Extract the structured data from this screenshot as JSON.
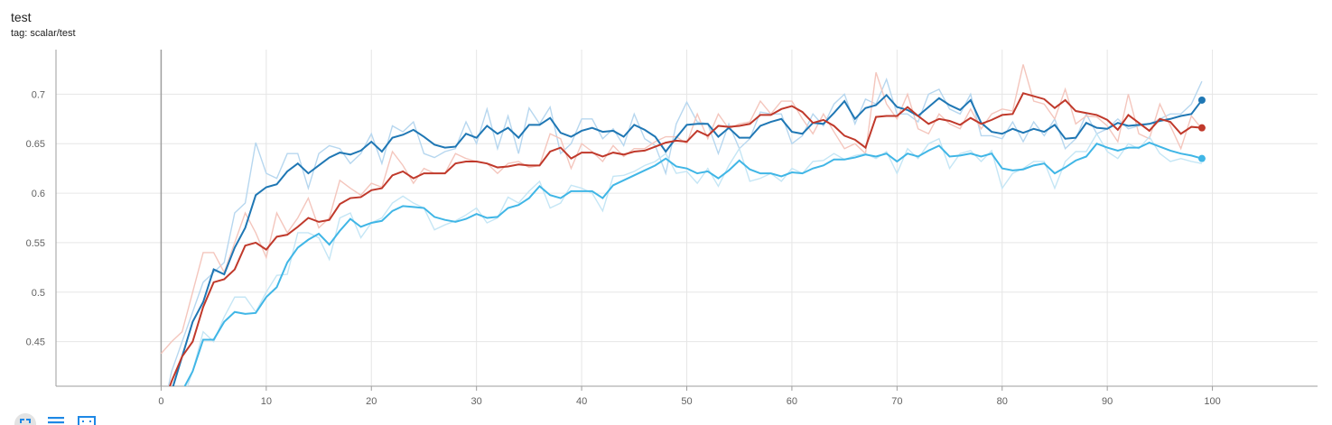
{
  "card": {
    "title": "test",
    "tag": "tag: scalar/test"
  },
  "colors": {
    "grid": "#e6e6e6",
    "axis": "#9e9e9e",
    "zero_line": "#9e9e9e",
    "series": [
      "#1f77b4",
      "#c0392b",
      "#40b6e6"
    ],
    "series_raw": [
      "#b7d7ef",
      "#f4c6bd",
      "#c5e6f5"
    ],
    "toolbar_icon": "#1e88e5"
  },
  "toolbar": {
    "icons": [
      "fullscreen-icon",
      "list-icon",
      "fit-domain-icon"
    ]
  },
  "chart_data": {
    "type": "line",
    "title": "",
    "xlabel": "",
    "ylabel": "",
    "xlim": [
      -10,
      110
    ],
    "ylim": [
      0.405,
      0.745
    ],
    "x_ticks": [
      0,
      10,
      20,
      30,
      40,
      50,
      60,
      70,
      80,
      90,
      100
    ],
    "y_ticks": [
      0.45,
      0.5,
      0.55,
      0.6,
      0.65,
      0.7
    ],
    "grid": true,
    "legend": "none",
    "series": [
      {
        "smoothed": [
          0.38,
          0.4,
          0.435,
          0.47,
          0.49,
          0.523,
          0.518,
          0.545,
          0.565,
          0.598,
          0.606,
          0.609,
          0.622,
          0.63,
          0.62,
          0.628,
          0.636,
          0.641,
          0.639,
          0.643,
          0.652,
          0.642,
          0.656,
          0.659,
          0.664,
          0.657,
          0.649,
          0.646,
          0.647,
          0.66,
          0.656,
          0.668,
          0.66,
          0.666,
          0.656,
          0.669,
          0.669,
          0.676,
          0.661,
          0.657,
          0.663,
          0.666,
          0.662,
          0.663,
          0.657,
          0.669,
          0.664,
          0.657,
          0.642,
          0.656,
          0.669,
          0.67,
          0.67,
          0.657,
          0.666,
          0.656,
          0.656,
          0.668,
          0.672,
          0.675,
          0.662,
          0.66,
          0.671,
          0.67,
          0.681,
          0.693,
          0.675,
          0.686,
          0.689,
          0.699,
          0.687,
          0.684,
          0.678,
          0.687,
          0.696,
          0.689,
          0.684,
          0.694,
          0.671,
          0.662,
          0.66,
          0.665,
          0.661,
          0.665,
          0.662,
          0.669,
          0.655,
          0.656,
          0.671,
          0.666,
          0.665,
          0.671,
          0.668,
          0.669,
          0.67,
          0.673,
          0.675,
          0.678,
          0.68,
          0.694
        ],
        "raw": [
          0.37,
          0.42,
          0.45,
          0.48,
          0.51,
          0.52,
          0.53,
          0.58,
          0.59,
          0.651,
          0.62,
          0.615,
          0.64,
          0.64,
          0.605,
          0.64,
          0.648,
          0.645,
          0.63,
          0.64,
          0.66,
          0.63,
          0.668,
          0.662,
          0.672,
          0.64,
          0.636,
          0.642,
          0.645,
          0.672,
          0.65,
          0.685,
          0.645,
          0.678,
          0.64,
          0.686,
          0.67,
          0.687,
          0.64,
          0.65,
          0.675,
          0.675,
          0.655,
          0.665,
          0.648,
          0.68,
          0.655,
          0.648,
          0.62,
          0.67,
          0.692,
          0.672,
          0.67,
          0.64,
          0.67,
          0.645,
          0.655,
          0.682,
          0.68,
          0.68,
          0.65,
          0.658,
          0.68,
          0.668,
          0.69,
          0.7,
          0.67,
          0.695,
          0.69,
          0.715,
          0.68,
          0.68,
          0.672,
          0.7,
          0.705,
          0.685,
          0.68,
          0.7,
          0.658,
          0.658,
          0.655,
          0.672,
          0.652,
          0.672,
          0.658,
          0.675,
          0.645,
          0.655,
          0.68,
          0.66,
          0.665,
          0.675,
          0.665,
          0.668,
          0.67,
          0.675,
          0.68,
          0.68,
          0.69,
          0.713
        ]
      },
      {
        "smoothed": [
          0.38,
          0.41,
          0.435,
          0.45,
          0.485,
          0.51,
          0.513,
          0.523,
          0.547,
          0.55,
          0.543,
          0.556,
          0.558,
          0.566,
          0.575,
          0.571,
          0.573,
          0.589,
          0.595,
          0.596,
          0.603,
          0.605,
          0.618,
          0.622,
          0.615,
          0.62,
          0.62,
          0.62,
          0.63,
          0.632,
          0.632,
          0.63,
          0.626,
          0.627,
          0.629,
          0.628,
          0.628,
          0.642,
          0.646,
          0.635,
          0.641,
          0.641,
          0.637,
          0.641,
          0.639,
          0.642,
          0.643,
          0.647,
          0.651,
          0.653,
          0.652,
          0.663,
          0.658,
          0.668,
          0.667,
          0.668,
          0.67,
          0.679,
          0.679,
          0.685,
          0.688,
          0.682,
          0.671,
          0.674,
          0.668,
          0.658,
          0.654,
          0.646,
          0.677,
          0.678,
          0.678,
          0.687,
          0.678,
          0.67,
          0.675,
          0.673,
          0.669,
          0.676,
          0.67,
          0.674,
          0.679,
          0.68,
          0.701,
          0.698,
          0.695,
          0.686,
          0.694,
          0.683,
          0.681,
          0.679,
          0.674,
          0.664,
          0.679,
          0.671,
          0.663,
          0.675,
          0.672,
          0.66,
          0.667,
          0.666
        ],
        "raw": [
          0.438,
          0.45,
          0.46,
          0.5,
          0.54,
          0.54,
          0.52,
          0.55,
          0.58,
          0.56,
          0.535,
          0.58,
          0.56,
          0.575,
          0.595,
          0.565,
          0.575,
          0.613,
          0.605,
          0.598,
          0.61,
          0.606,
          0.642,
          0.628,
          0.61,
          0.625,
          0.62,
          0.62,
          0.64,
          0.635,
          0.632,
          0.63,
          0.62,
          0.63,
          0.632,
          0.626,
          0.628,
          0.66,
          0.655,
          0.625,
          0.65,
          0.642,
          0.632,
          0.648,
          0.637,
          0.645,
          0.645,
          0.652,
          0.657,
          0.657,
          0.65,
          0.68,
          0.655,
          0.68,
          0.665,
          0.67,
          0.672,
          0.693,
          0.68,
          0.693,
          0.693,
          0.675,
          0.66,
          0.68,
          0.662,
          0.645,
          0.65,
          0.64,
          0.722,
          0.69,
          0.675,
          0.7,
          0.665,
          0.66,
          0.68,
          0.67,
          0.665,
          0.685,
          0.665,
          0.68,
          0.685,
          0.683,
          0.73,
          0.693,
          0.69,
          0.675,
          0.705,
          0.67,
          0.678,
          0.677,
          0.668,
          0.652,
          0.7,
          0.66,
          0.655,
          0.69,
          0.668,
          0.645,
          0.678,
          0.665
        ]
      },
      {
        "smoothed": [
          0.38,
          0.39,
          0.4,
          0.42,
          0.452,
          0.452,
          0.47,
          0.48,
          0.478,
          0.479,
          0.495,
          0.505,
          0.53,
          0.545,
          0.553,
          0.559,
          0.548,
          0.562,
          0.574,
          0.566,
          0.57,
          0.572,
          0.582,
          0.587,
          0.586,
          0.585,
          0.576,
          0.573,
          0.571,
          0.574,
          0.579,
          0.575,
          0.576,
          0.585,
          0.588,
          0.595,
          0.607,
          0.598,
          0.595,
          0.602,
          0.602,
          0.602,
          0.595,
          0.608,
          0.613,
          0.618,
          0.623,
          0.628,
          0.635,
          0.627,
          0.625,
          0.62,
          0.622,
          0.615,
          0.623,
          0.633,
          0.624,
          0.62,
          0.62,
          0.617,
          0.621,
          0.62,
          0.625,
          0.628,
          0.634,
          0.634,
          0.636,
          0.639,
          0.637,
          0.64,
          0.632,
          0.64,
          0.637,
          0.643,
          0.648,
          0.637,
          0.638,
          0.64,
          0.637,
          0.64,
          0.625,
          0.623,
          0.624,
          0.628,
          0.63,
          0.62,
          0.626,
          0.633,
          0.637,
          0.65,
          0.646,
          0.643,
          0.646,
          0.646,
          0.651,
          0.647,
          0.643,
          0.64,
          0.638,
          0.635
        ],
        "raw": [
          0.37,
          0.38,
          0.39,
          0.42,
          0.46,
          0.45,
          0.475,
          0.495,
          0.495,
          0.48,
          0.5,
          0.517,
          0.518,
          0.56,
          0.56,
          0.555,
          0.533,
          0.575,
          0.58,
          0.555,
          0.57,
          0.575,
          0.59,
          0.597,
          0.59,
          0.585,
          0.563,
          0.568,
          0.572,
          0.578,
          0.585,
          0.57,
          0.575,
          0.596,
          0.59,
          0.602,
          0.612,
          0.585,
          0.59,
          0.608,
          0.605,
          0.6,
          0.582,
          0.617,
          0.618,
          0.622,
          0.628,
          0.632,
          0.64,
          0.62,
          0.622,
          0.61,
          0.625,
          0.607,
          0.628,
          0.645,
          0.612,
          0.615,
          0.62,
          0.612,
          0.625,
          0.62,
          0.632,
          0.633,
          0.64,
          0.634,
          0.638,
          0.64,
          0.635,
          0.642,
          0.62,
          0.645,
          0.635,
          0.65,
          0.655,
          0.625,
          0.64,
          0.643,
          0.632,
          0.643,
          0.605,
          0.62,
          0.625,
          0.632,
          0.632,
          0.605,
          0.632,
          0.642,
          0.642,
          0.66,
          0.642,
          0.635,
          0.65,
          0.645,
          0.657,
          0.64,
          0.632,
          0.635,
          0.632,
          0.63
        ]
      }
    ]
  }
}
